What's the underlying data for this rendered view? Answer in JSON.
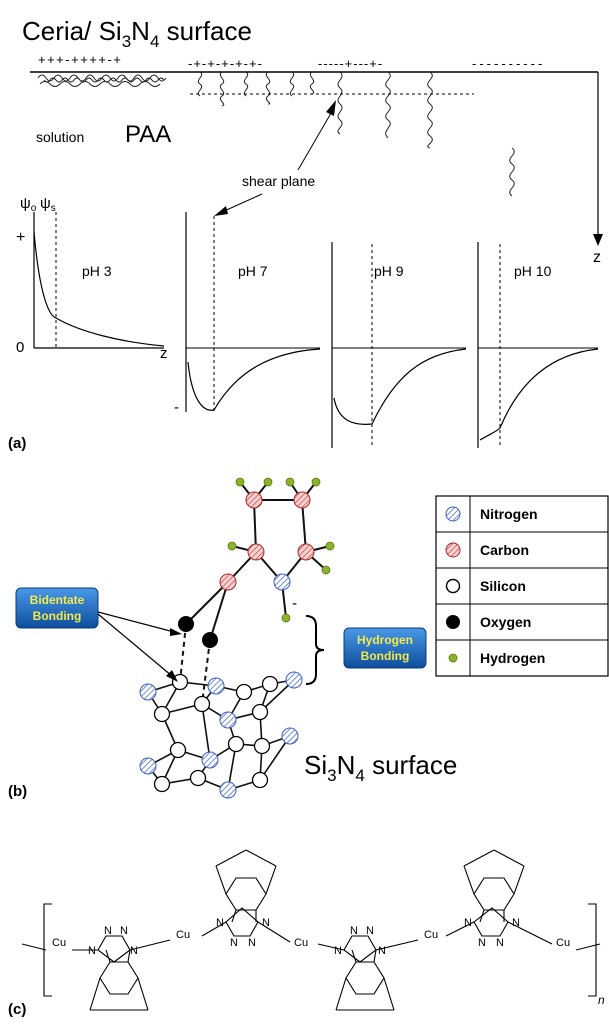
{
  "panel_a": {
    "title_main": "Ceria/ Si",
    "title_sub1": "3",
    "title_mid": "N",
    "title_sub2": "4",
    "title_end": " surface",
    "charges_left": "+++-++++-+",
    "charges_mid": "-+-+-+-+-+-",
    "charges_mid2": "-----+---+-",
    "charges_right": "----------",
    "solution": "solution",
    "paa": "PAA",
    "shear_plane": "shear plane",
    "psi_o": "ψ",
    "psi_o_sub": "o",
    "psi_s": "ψ",
    "psi_s_sub": "s",
    "plus": "+",
    "zero": "0",
    "minus": "-",
    "z_axis": "z",
    "z_right": "z",
    "ph_labels": [
      "pH 3",
      "pH 7",
      "pH 9",
      "pH 10"
    ],
    "label": "(a)"
  },
  "panel_b": {
    "bidentate_line1": "Bidentate",
    "bidentate_line2": "Bonding",
    "hydrogen_line1": "Hydrogen",
    "hydrogen_line2": "Bonding",
    "minus": "-",
    "legend": [
      {
        "name": "Nitrogen",
        "icon": "nitrogen-icon"
      },
      {
        "name": "Carbon",
        "icon": "carbon-icon"
      },
      {
        "name": "Silicon",
        "icon": "silicon-icon"
      },
      {
        "name": "Oxygen",
        "icon": "oxygen-icon"
      },
      {
        "name": "Hydrogen",
        "icon": "hydrogen-icon"
      }
    ],
    "surface_main": "Si",
    "surface_sub1": "3",
    "surface_mid": "N",
    "surface_sub2": "4",
    "surface_end": " surface",
    "label": "(b)"
  },
  "panel_c": {
    "cu": "Cu",
    "n": "N",
    "subscript": "n",
    "label": "(c)"
  },
  "colors": {
    "nitrogen": "#5b7fe0",
    "carbon": "#d84a4a",
    "hydrogen": "#8cb428",
    "badge": "#1a5fb4",
    "badge_text": "#f4e94a"
  }
}
